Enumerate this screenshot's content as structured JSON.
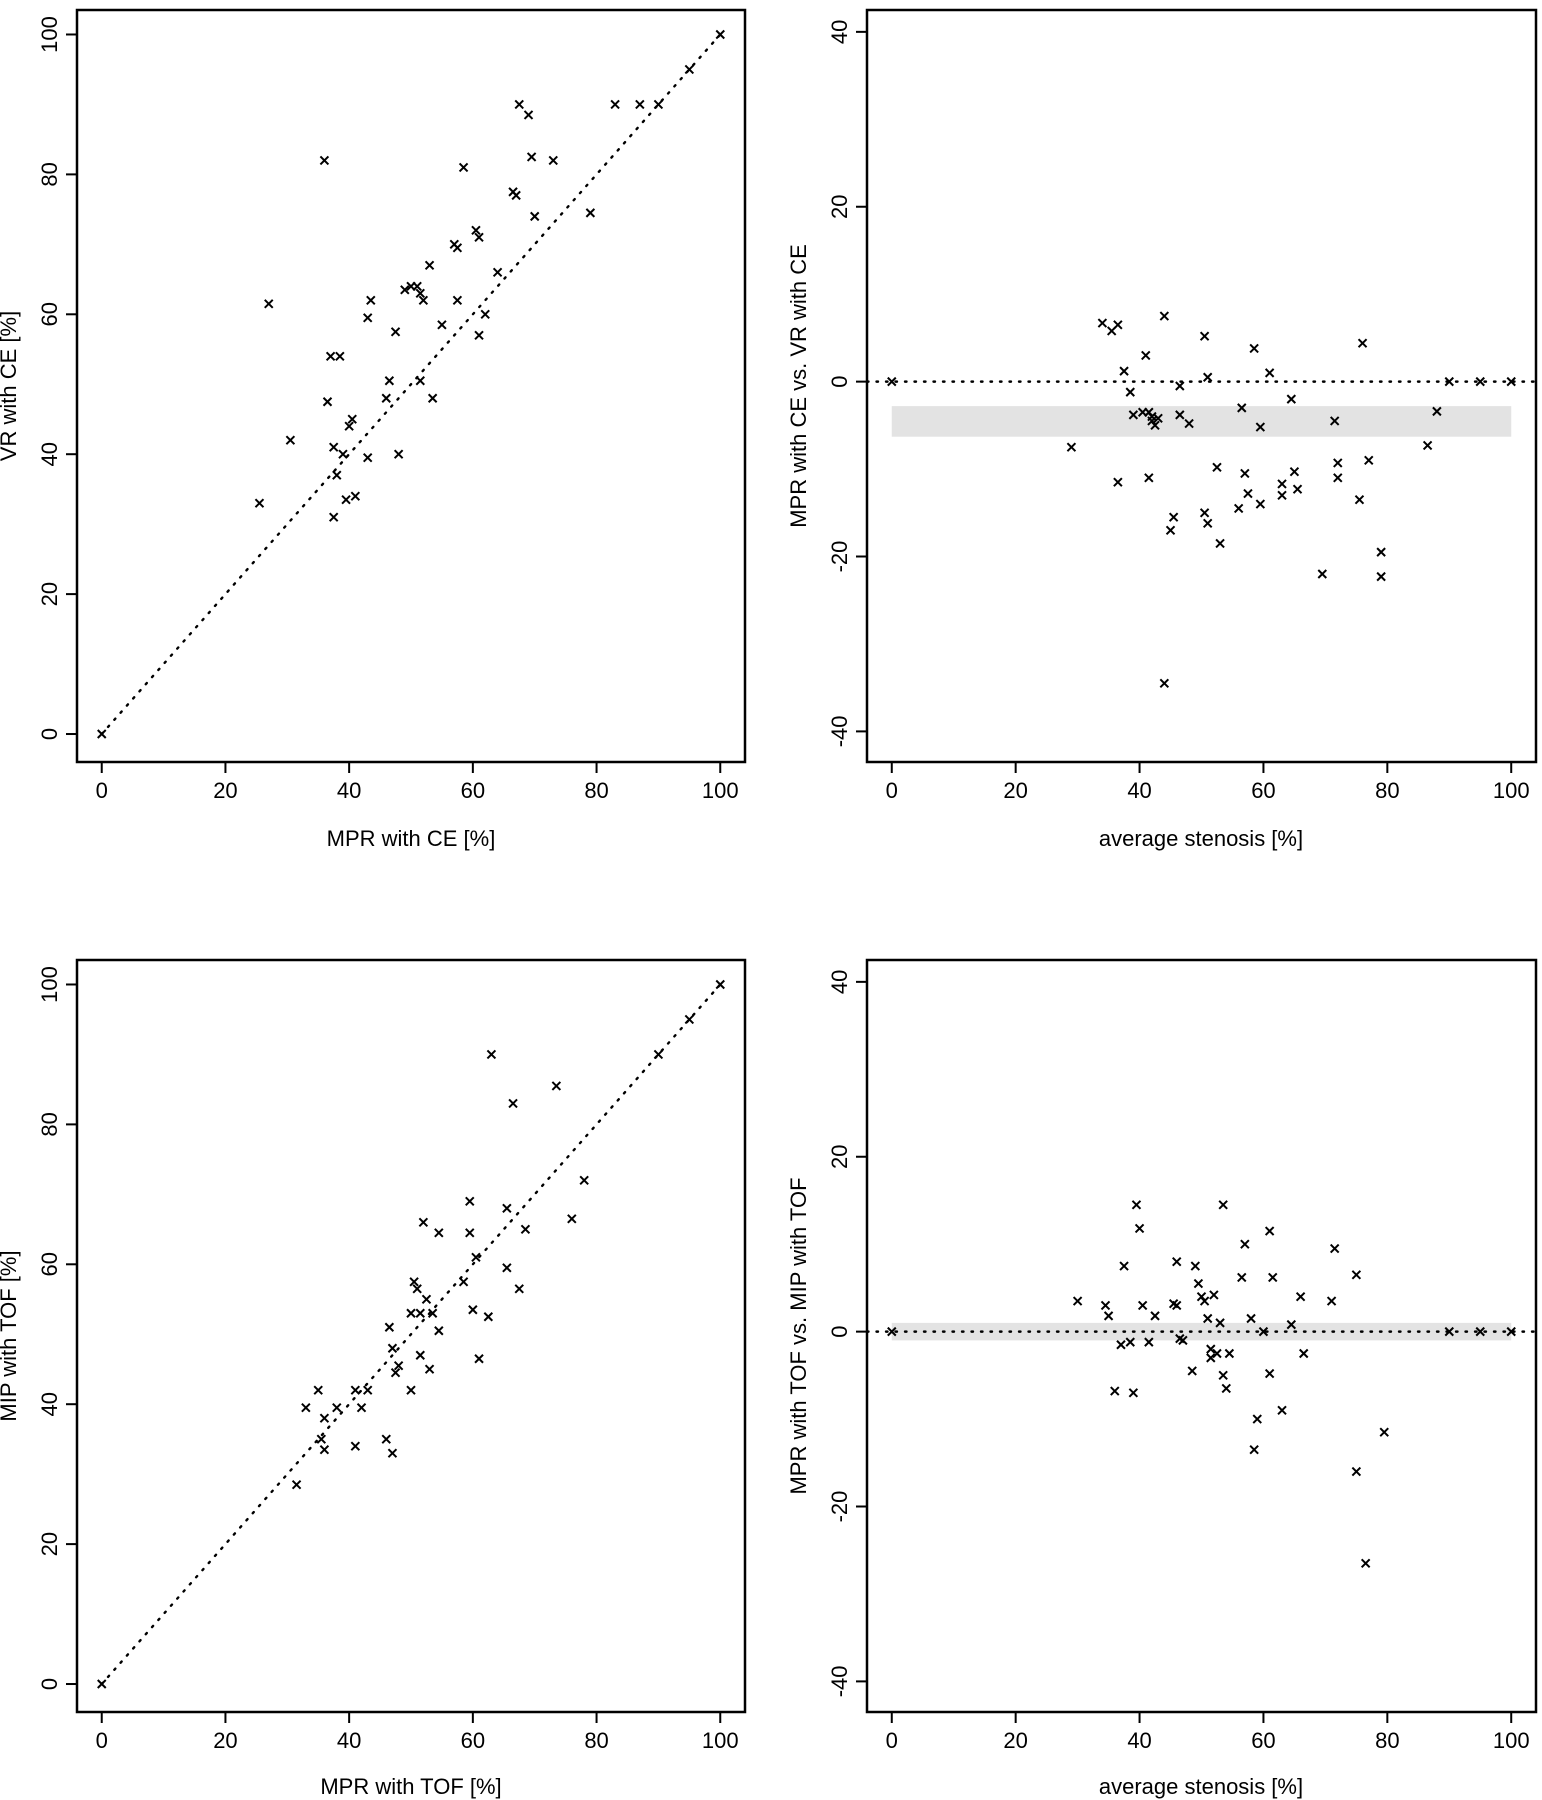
{
  "chart_data": [
    {
      "id": "p1",
      "type": "scatter",
      "title": "",
      "xlabel": "MPR with CE [%]",
      "ylabel": "VR with CE [%]",
      "xlim": [
        -4,
        104
      ],
      "ylim": [
        -4,
        103.5
      ],
      "xticks": [
        0,
        20,
        40,
        60,
        80,
        100
      ],
      "yticks": [
        0,
        20,
        40,
        60,
        80,
        100
      ],
      "grid": false,
      "reference_line": {
        "style": "dotted",
        "from": [
          0,
          0
        ],
        "to": [
          100,
          100
        ]
      },
      "points": [
        [
          0,
          0
        ],
        [
          25.5,
          33
        ],
        [
          27,
          61.5
        ],
        [
          30.5,
          42
        ],
        [
          36,
          82
        ],
        [
          36.5,
          47.5
        ],
        [
          37,
          54
        ],
        [
          37.5,
          41
        ],
        [
          37.5,
          31
        ],
        [
          38,
          37
        ],
        [
          38.5,
          54
        ],
        [
          39,
          40
        ],
        [
          39.5,
          33.5
        ],
        [
          40,
          44
        ],
        [
          40.5,
          45
        ],
        [
          41,
          34
        ],
        [
          43,
          39.5
        ],
        [
          43,
          59.5
        ],
        [
          43.5,
          62
        ],
        [
          46,
          48
        ],
        [
          46.5,
          50.5
        ],
        [
          47.5,
          57.5
        ],
        [
          48,
          40
        ],
        [
          49,
          63.5
        ],
        [
          50,
          64
        ],
        [
          51,
          64
        ],
        [
          51.5,
          63
        ],
        [
          51.5,
          50.5
        ],
        [
          52,
          62
        ],
        [
          53,
          67
        ],
        [
          53.5,
          48
        ],
        [
          55,
          58.5
        ],
        [
          57,
          70
        ],
        [
          57.5,
          62
        ],
        [
          57.5,
          69.5
        ],
        [
          58.5,
          81
        ],
        [
          60.5,
          72
        ],
        [
          61,
          71
        ],
        [
          61,
          57
        ],
        [
          62,
          60
        ],
        [
          64,
          66
        ],
        [
          66.5,
          77.5
        ],
        [
          67,
          77
        ],
        [
          67.5,
          90
        ],
        [
          69,
          88.5
        ],
        [
          69.5,
          82.5
        ],
        [
          70,
          74
        ],
        [
          73,
          82
        ],
        [
          79,
          74.5
        ],
        [
          83,
          90
        ],
        [
          87,
          90
        ],
        [
          90,
          90
        ],
        [
          95,
          95
        ],
        [
          100,
          100
        ]
      ]
    },
    {
      "id": "p2",
      "type": "scatter",
      "title": "",
      "xlabel": "average stenosis [%]",
      "ylabel": "MPR with CE vs. VR with CE",
      "xlim": [
        -4,
        104
      ],
      "ylim": [
        -43.5,
        42.5
      ],
      "xticks": [
        0,
        20,
        40,
        60,
        80,
        100
      ],
      "yticks": [
        -40,
        -20,
        0,
        20,
        40
      ],
      "grid": false,
      "reference_line": {
        "style": "dotted",
        "y": 0
      },
      "band": {
        "from": -6.3,
        "to": -2.8
      },
      "points": [
        [
          0,
          0
        ],
        [
          29,
          -7.5
        ],
        [
          34,
          6.7
        ],
        [
          35.5,
          5.8
        ],
        [
          36.5,
          6.5
        ],
        [
          36.5,
          -11.5
        ],
        [
          37.5,
          1.2
        ],
        [
          38.5,
          -1.2
        ],
        [
          39,
          -3.8
        ],
        [
          40.5,
          -3.5
        ],
        [
          41,
          3
        ],
        [
          41.5,
          -3.5
        ],
        [
          41.5,
          -11
        ],
        [
          42,
          -4
        ],
        [
          42,
          -4.5
        ],
        [
          42.5,
          -5
        ],
        [
          43,
          -4.2
        ],
        [
          44,
          7.5
        ],
        [
          44,
          -34.5
        ],
        [
          45,
          -17
        ],
        [
          45.5,
          -15.5
        ],
        [
          46.5,
          -0.5
        ],
        [
          46.5,
          -3.8
        ],
        [
          48,
          -4.8
        ],
        [
          50.5,
          5.2
        ],
        [
          50.5,
          -15
        ],
        [
          51,
          -16.2
        ],
        [
          51,
          0.5
        ],
        [
          52.5,
          -9.8
        ],
        [
          53,
          -18.5
        ],
        [
          56,
          -14.5
        ],
        [
          56.5,
          -3
        ],
        [
          57,
          -10.5
        ],
        [
          57.5,
          -12.8
        ],
        [
          58.5,
          3.8
        ],
        [
          59.5,
          -5.2
        ],
        [
          59.5,
          -14
        ],
        [
          61,
          1
        ],
        [
          63,
          -11.7
        ],
        [
          63,
          -13
        ],
        [
          64.5,
          -2
        ],
        [
          65,
          -10.3
        ],
        [
          65.5,
          -12.3
        ],
        [
          69.5,
          -22
        ],
        [
          71.5,
          -4.5
        ],
        [
          72,
          -9.3
        ],
        [
          72,
          -11
        ],
        [
          75.5,
          -13.5
        ],
        [
          76,
          4.4
        ],
        [
          77,
          -9
        ],
        [
          79,
          -19.5
        ],
        [
          79,
          -22.3
        ],
        [
          86.5,
          -7.3
        ],
        [
          88,
          -3.4
        ],
        [
          90,
          0
        ],
        [
          95,
          0
        ],
        [
          100,
          0
        ]
      ]
    },
    {
      "id": "p3",
      "type": "scatter",
      "title": "",
      "xlabel": "MPR with TOF [%]",
      "ylabel": "MIP with TOF [%]",
      "xlim": [
        -4,
        104
      ],
      "ylim": [
        -4,
        103.5
      ],
      "xticks": [
        0,
        20,
        40,
        60,
        80,
        100
      ],
      "yticks": [
        0,
        20,
        40,
        60,
        80,
        100
      ],
      "grid": false,
      "reference_line": {
        "style": "dotted",
        "from": [
          0,
          0
        ],
        "to": [
          100,
          100
        ]
      },
      "points": [
        [
          0,
          0
        ],
        [
          31.5,
          28.5
        ],
        [
          33,
          39.5
        ],
        [
          35,
          42
        ],
        [
          35.5,
          35
        ],
        [
          36,
          33.5
        ],
        [
          36,
          38
        ],
        [
          38,
          39.5
        ],
        [
          41,
          34
        ],
        [
          41,
          42
        ],
        [
          42,
          39.5
        ],
        [
          43,
          42
        ],
        [
          46,
          35
        ],
        [
          46.5,
          51
        ],
        [
          47,
          33
        ],
        [
          47,
          48
        ],
        [
          47.5,
          44.5
        ],
        [
          48,
          45.5
        ],
        [
          50,
          42
        ],
        [
          50,
          53
        ],
        [
          50.5,
          57.5
        ],
        [
          51,
          56.5
        ],
        [
          51.5,
          53
        ],
        [
          51.5,
          47
        ],
        [
          52,
          66
        ],
        [
          52.5,
          55
        ],
        [
          53,
          45
        ],
        [
          53.5,
          53
        ],
        [
          54.5,
          64.5
        ],
        [
          54.5,
          50.5
        ],
        [
          58.5,
          57.5
        ],
        [
          59.5,
          64.5
        ],
        [
          59.5,
          69
        ],
        [
          60,
          53.5
        ],
        [
          60.5,
          61
        ],
        [
          61,
          46.5
        ],
        [
          62.5,
          52.5
        ],
        [
          63,
          90
        ],
        [
          65.5,
          59.5
        ],
        [
          65.5,
          68
        ],
        [
          66.5,
          83
        ],
        [
          67.5,
          56.5
        ],
        [
          68.5,
          65
        ],
        [
          73.5,
          85.5
        ],
        [
          76,
          66.5
        ],
        [
          78,
          72
        ],
        [
          90,
          90
        ],
        [
          95,
          95
        ],
        [
          100,
          100
        ]
      ]
    },
    {
      "id": "p4",
      "type": "scatter",
      "title": "",
      "xlabel": "average stenosis [%]",
      "ylabel": "MPR with TOF vs. MIP with TOF",
      "xlim": [
        -4,
        104
      ],
      "ylim": [
        -43.5,
        42.5
      ],
      "xticks": [
        0,
        20,
        40,
        60,
        80,
        100
      ],
      "yticks": [
        -40,
        -20,
        0,
        20,
        40
      ],
      "grid": false,
      "reference_line": {
        "style": "dotted",
        "y": 0
      },
      "band": {
        "from": -1,
        "to": 1
      },
      "points": [
        [
          0,
          0
        ],
        [
          30,
          3.5
        ],
        [
          34.5,
          3
        ],
        [
          35,
          1.8
        ],
        [
          36,
          -6.8
        ],
        [
          37,
          -1.5
        ],
        [
          37.5,
          7.5
        ],
        [
          38.5,
          -1.2
        ],
        [
          39,
          -7
        ],
        [
          39.5,
          14.5
        ],
        [
          40,
          11.8
        ],
        [
          40.5,
          3
        ],
        [
          41.5,
          -1.2
        ],
        [
          42.5,
          1.8
        ],
        [
          45.5,
          3.2
        ],
        [
          46,
          3
        ],
        [
          46,
          8
        ],
        [
          46.5,
          -0.8
        ],
        [
          47,
          -1
        ],
        [
          48.5,
          -4.5
        ],
        [
          49,
          7.5
        ],
        [
          49.5,
          5.5
        ],
        [
          50,
          4
        ],
        [
          50.5,
          3.5
        ],
        [
          51,
          1.5
        ],
        [
          51.5,
          -2
        ],
        [
          51.5,
          -3
        ],
        [
          52,
          4.2
        ],
        [
          52.5,
          -2.5
        ],
        [
          53,
          1
        ],
        [
          53.5,
          -5
        ],
        [
          53.5,
          14.5
        ],
        [
          54,
          -6.5
        ],
        [
          54.5,
          -2.5
        ],
        [
          56.5,
          6.2
        ],
        [
          57,
          10
        ],
        [
          58,
          1.5
        ],
        [
          58.5,
          -13.5
        ],
        [
          59,
          -10
        ],
        [
          60,
          0
        ],
        [
          61,
          11.5
        ],
        [
          61,
          -4.8
        ],
        [
          61.5,
          6.2
        ],
        [
          63,
          -9
        ],
        [
          64.5,
          0.8
        ],
        [
          66,
          4
        ],
        [
          66.5,
          -2.5
        ],
        [
          71,
          3.5
        ],
        [
          71.5,
          9.5
        ],
        [
          75,
          -16
        ],
        [
          75,
          6.5
        ],
        [
          76.5,
          -26.5
        ],
        [
          79.5,
          -11.5
        ],
        [
          90,
          0
        ],
        [
          95,
          0
        ],
        [
          100,
          0
        ]
      ]
    }
  ]
}
